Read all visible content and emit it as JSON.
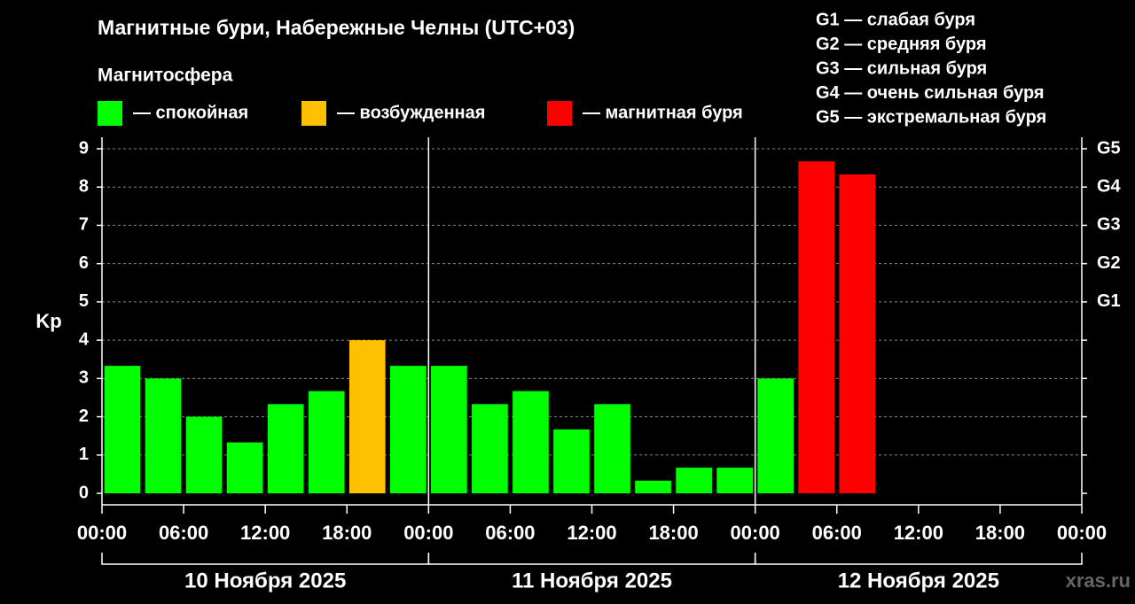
{
  "chart_data": {
    "type": "bar",
    "title": "Магнитные бури, Набережные Челны (UTC+03)",
    "subtitle": "Магнитосфера",
    "y_label": "Kp",
    "legend": [
      {
        "label": "— спокойная",
        "color": "#00ff00"
      },
      {
        "label": "— возбужденная",
        "color": "#ffc000"
      },
      {
        "label": "— магнитная буря",
        "color": "#ff0000"
      }
    ],
    "storm_scale": [
      "G1 — слабая буря",
      "G2 — средняя буря",
      "G3 — сильная буря",
      "G4 — очень сильная буря",
      "G5 — экстремальная буря"
    ],
    "x": [
      1.5,
      4.5,
      7.5,
      10.5,
      13.5,
      16.5,
      19.5,
      22.5,
      25.5,
      28.5,
      31.5,
      34.5,
      37.5,
      40.5,
      43.5,
      46.5,
      49.5,
      52.5,
      55.5
    ],
    "values": [
      3.33,
      3.0,
      2.0,
      1.33,
      2.33,
      2.67,
      4.0,
      3.33,
      3.33,
      2.33,
      2.67,
      1.67,
      2.33,
      0.33,
      0.67,
      0.67,
      3.0,
      8.67,
      8.33
    ],
    "colors": [
      "#00ff00",
      "#00ff00",
      "#00ff00",
      "#00ff00",
      "#00ff00",
      "#00ff00",
      "#ffc000",
      "#00ff00",
      "#00ff00",
      "#00ff00",
      "#00ff00",
      "#00ff00",
      "#00ff00",
      "#00ff00",
      "#00ff00",
      "#00ff00",
      "#00ff00",
      "#ff0000",
      "#ff0000"
    ],
    "bar_width": 2.65,
    "xlim": [
      0,
      72
    ],
    "xticks": [
      {
        "value": 0,
        "label": "00:00"
      },
      {
        "value": 6,
        "label": "06:00"
      },
      {
        "value": 12,
        "label": "12:00"
      },
      {
        "value": 18,
        "label": "18:00"
      },
      {
        "value": 24,
        "label": "00:00"
      },
      {
        "value": 30,
        "label": "06:00"
      },
      {
        "value": 36,
        "label": "12:00"
      },
      {
        "value": 42,
        "label": "18:00"
      },
      {
        "value": 48,
        "label": "00:00"
      },
      {
        "value": 54,
        "label": "06:00"
      },
      {
        "value": 60,
        "label": "12:00"
      },
      {
        "value": 66,
        "label": "18:00"
      },
      {
        "value": 72,
        "label": "00:00"
      }
    ],
    "days": [
      {
        "label": "10 Ноября 2025",
        "start": 0,
        "end": 24
      },
      {
        "label": "11 Ноября 2025",
        "start": 24,
        "end": 48
      },
      {
        "label": "12 Ноября 2025",
        "start": 48,
        "end": 72
      }
    ],
    "ylim": [
      -0.3,
      9.3
    ],
    "yticks": [
      0,
      1,
      2,
      3,
      4,
      5,
      6,
      7,
      8,
      9
    ],
    "y2ticks": [
      {
        "value": 5,
        "label": "G1"
      },
      {
        "value": 6,
        "label": "G2"
      },
      {
        "value": 7,
        "label": "G3"
      },
      {
        "value": 8,
        "label": "G4"
      },
      {
        "value": 9,
        "label": "G5"
      }
    ],
    "grid": true,
    "watermark": "xras.ru"
  }
}
